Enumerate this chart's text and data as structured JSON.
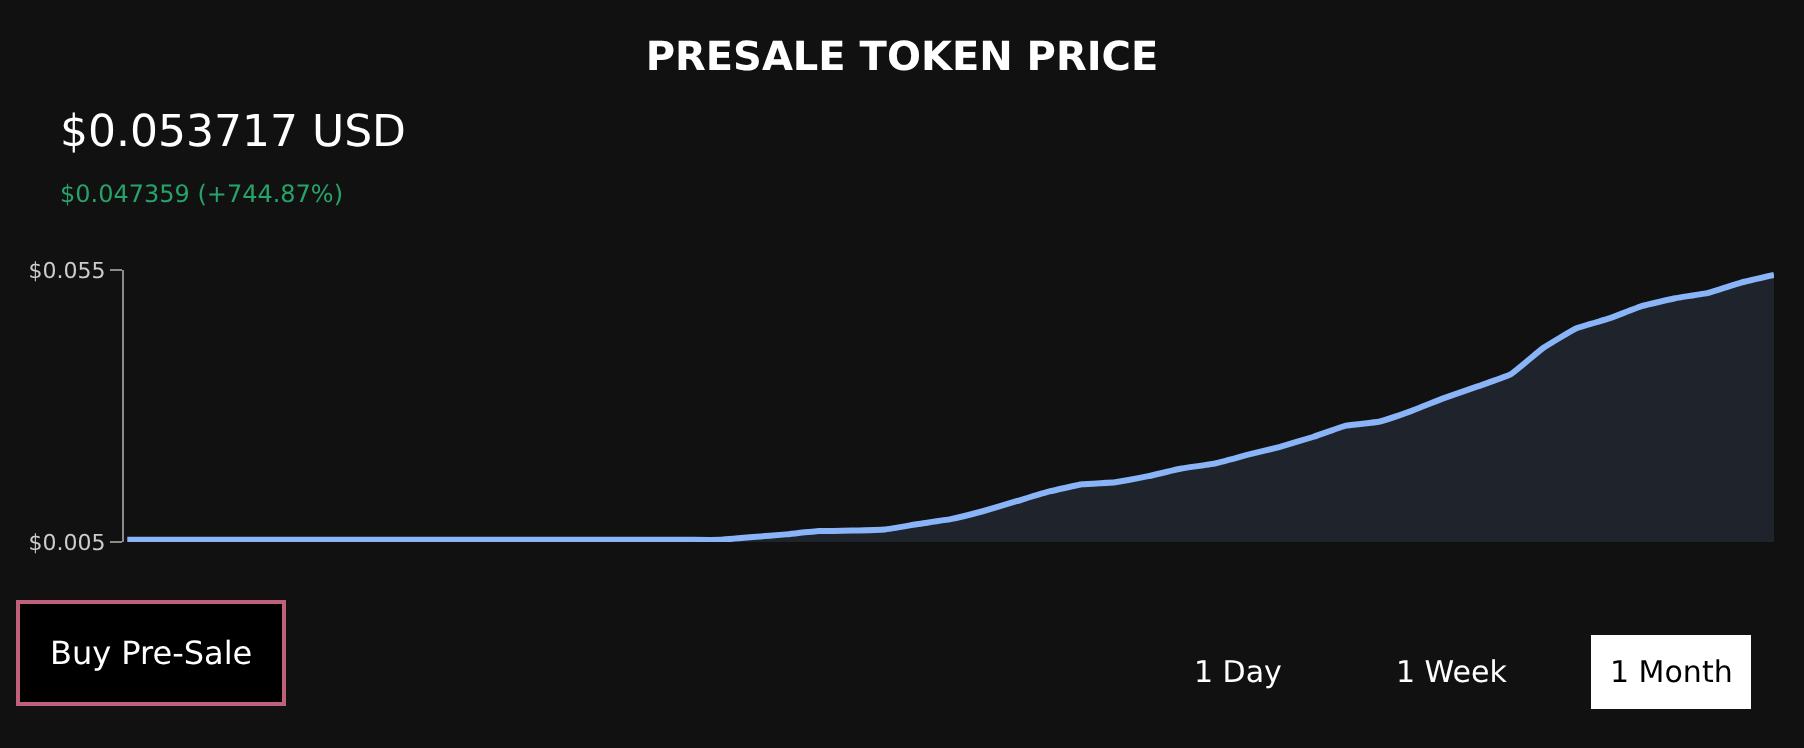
{
  "chart_data": {
    "type": "area",
    "title": "PRESALE TOKEN PRICE",
    "subtitle": "$0.053717 USD",
    "annotations": [
      "$0.047359 (+744.87%)",
      "Buy Pre-Sale",
      "1 Day",
      "1 Week",
      "1 Month"
    ],
    "categories": [
      null,
      null,
      null,
      null,
      null,
      null,
      null,
      null,
      null,
      null,
      null,
      null,
      null,
      null,
      null,
      null,
      null,
      null,
      null,
      null,
      null,
      null,
      null,
      null,
      null,
      null,
      null,
      null,
      null,
      null,
      null,
      null,
      null,
      null,
      null,
      null,
      null,
      null,
      null,
      null,
      null,
      null,
      null,
      null,
      null,
      null,
      null,
      null,
      null,
      null,
      null
    ],
    "series": [
      {
        "color": "#8ab4f8",
        "values": [
          0.0054,
          0.0054,
          0.0054,
          0.0054,
          0.0054,
          0.0054,
          0.0054,
          0.0054,
          0.0054,
          0.0054,
          0.0054,
          0.0054,
          0.0054,
          0.0054,
          0.0054,
          0.0054,
          0.0054,
          0.0054,
          0.0054,
          0.0059,
          0.0064,
          0.007,
          0.0071,
          0.0073,
          0.0083,
          0.0092,
          0.0107,
          0.0125,
          0.0143,
          0.0156,
          0.016,
          0.0171,
          0.0185,
          0.0194,
          0.021,
          0.0225,
          0.0243,
          0.0264,
          0.0271,
          0.0291,
          0.0315,
          0.0336,
          0.0358,
          0.0407,
          0.0443,
          0.0461,
          0.0484,
          0.0498,
          0.0508,
          0.0527,
          0.0541
        ]
      }
    ],
    "ylim": [
      0.005,
      0.055
    ],
    "yticks": [
      {
        "value": 0.005,
        "label": "$0.005"
      },
      {
        "value": 0.055,
        "label": "$0.055"
      }
    ],
    "tick_labels": "y",
    "grid": false,
    "marker": "none",
    "line_style": "solid"
  }
}
